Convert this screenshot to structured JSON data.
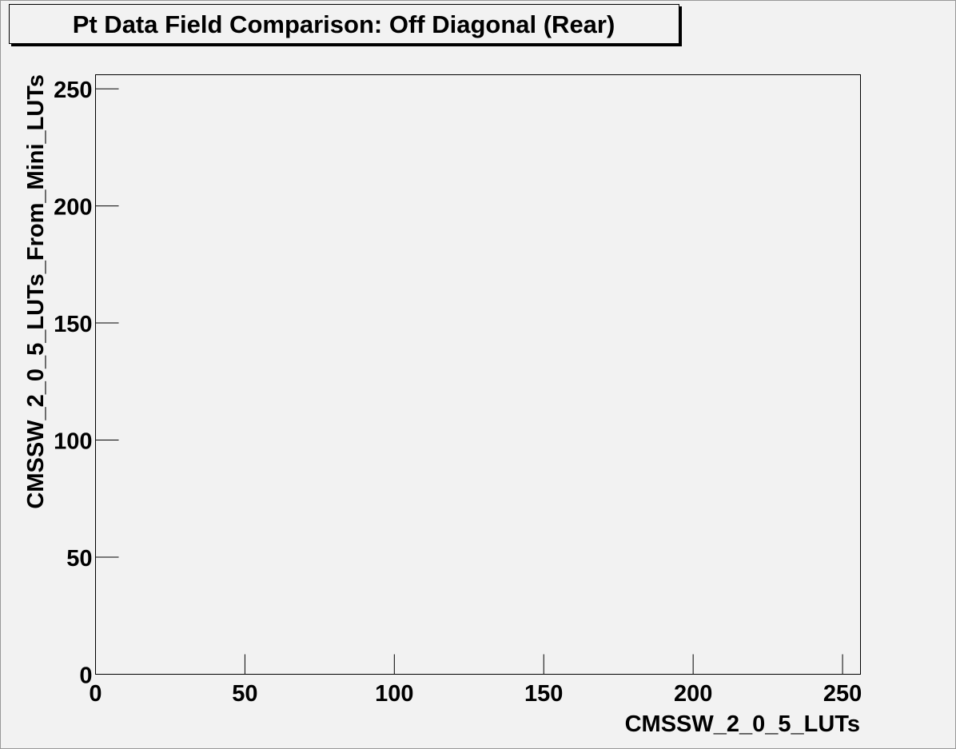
{
  "chart_data": {
    "type": "scatter",
    "title": "Pt Data Field Comparison: Off Diagonal (Rear)",
    "x_label": "CMSSW_2_0_5_LUTs",
    "y_label": "CMSSW_2_0_5_LUTs_From_Mini_LUTs",
    "xlim": [
      0,
      256
    ],
    "ylim": [
      0,
      256
    ],
    "xticks": [
      0,
      50,
      100,
      150,
      200,
      250
    ],
    "yticks": [
      0,
      50,
      100,
      150,
      200,
      250
    ]
  }
}
